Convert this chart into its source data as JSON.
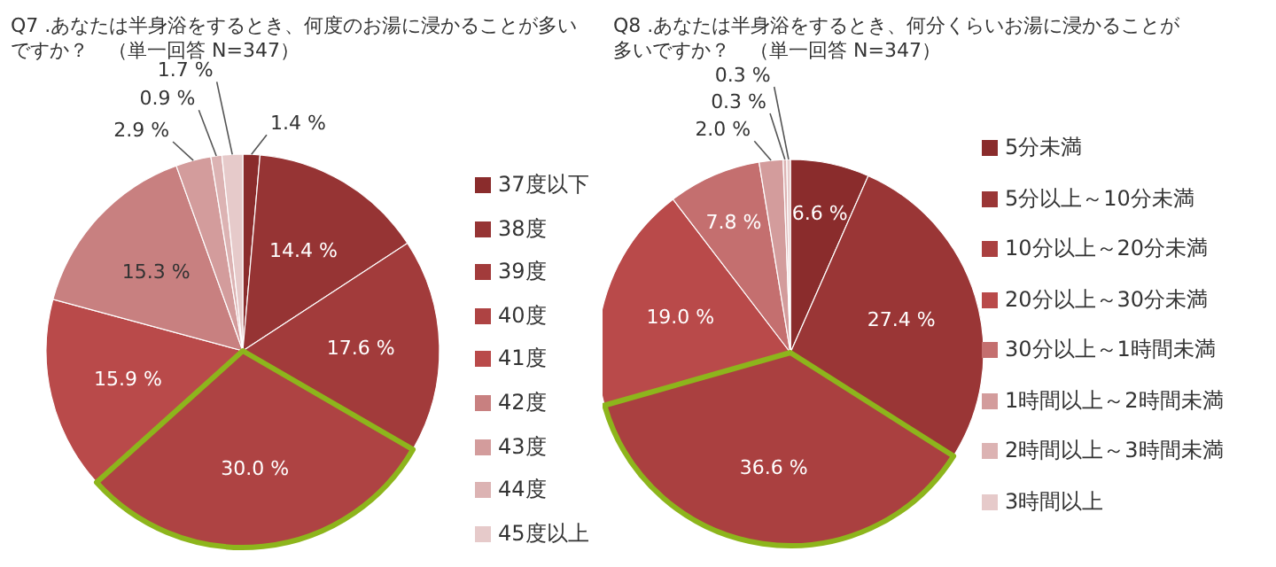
{
  "chart_data": [
    {
      "type": "pie",
      "title": "Q7 .あなたは半身浴をするとき、何度のお湯に浸かることが多いですか？　（単一回答 N=347）",
      "categories": [
        "37度以下",
        "38度",
        "39度",
        "40度",
        "41度",
        "42度",
        "43度",
        "44度",
        "45度以上"
      ],
      "values": [
        1.4,
        14.4,
        17.6,
        30.0,
        15.9,
        15.3,
        2.9,
        0.9,
        1.7
      ],
      "value_labels": [
        "1.4 %",
        "14.4 %",
        "17.6 %",
        "30.0 %",
        "15.9 %",
        "15.3 %",
        "2.9 %",
        "0.9 %",
        "1.7 %"
      ],
      "colors": [
        "#8a2c2c",
        "#963434",
        "#a23b3b",
        "#ae4343",
        "#b94a4a",
        "#c88080",
        "#d39c9c",
        "#dcb3b3",
        "#e6caca"
      ],
      "legend": "right"
    },
    {
      "type": "pie",
      "title": "Q8 .あなたは半身浴をするとき、何分くらいお湯に浸かることが多いですか？　（単一回答 N=347）",
      "categories": [
        "5分未満",
        "5分以上～10分未満",
        "10分以上～20分未満",
        "20分以上～30分未満",
        "30分以上～1時間未満",
        "1時間以上～2時間未満",
        "2時間以上～3時間未満",
        "3時間以上"
      ],
      "values": [
        6.6,
        27.4,
        36.6,
        19.0,
        7.8,
        2.0,
        0.3,
        0.3
      ],
      "value_labels": [
        "6.6 %",
        "27.4 %",
        "36.6 %",
        "19.0 %",
        "7.8 %",
        "2.0 %",
        "0.3 %",
        "0.3 %"
      ],
      "colors": [
        "#8a2c2c",
        "#9a3636",
        "#aa4040",
        "#b94a4a",
        "#c46f6f",
        "#d39c9c",
        "#dcb3b3",
        "#e6caca"
      ],
      "legend": "right"
    }
  ]
}
